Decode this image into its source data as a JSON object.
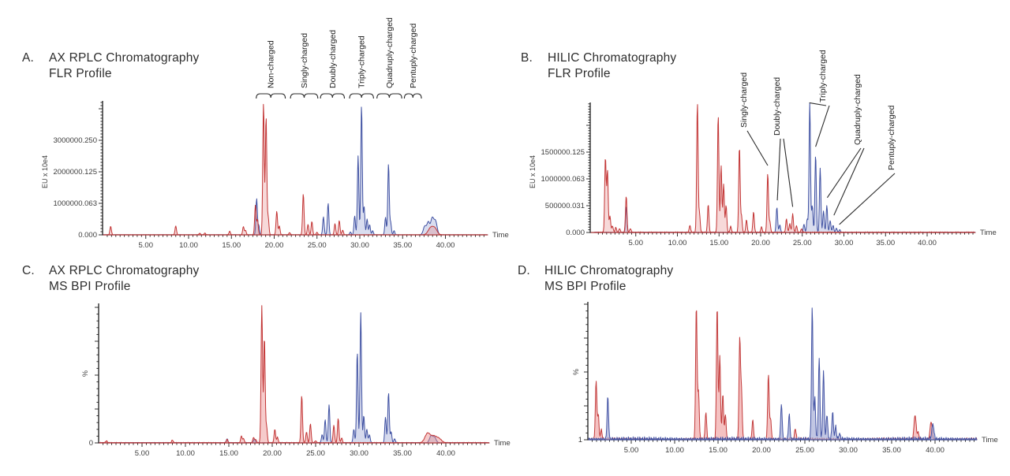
{
  "chart_data": [
    {
      "id": "A",
      "letter": "A.",
      "title_lines": [
        "AX RPLC Chromatography",
        "FLR Profile"
      ],
      "type": "line",
      "xlabel": "Time",
      "ylabel": "EU x 10e4",
      "x_tick_labels": [
        "5.00",
        "10.00",
        "15.00",
        "20.00",
        "25.00",
        "30.00",
        "35.00",
        "40.00"
      ],
      "x_major_ticks": [
        5,
        10,
        15,
        20,
        25,
        30,
        35,
        40
      ],
      "xlim": [
        0,
        44.8
      ],
      "ylim": [
        0,
        4250000
      ],
      "y_ticks": [
        {
          "v": 0,
          "label": "0.000"
        },
        {
          "v": 1000000,
          "label": "1000000.063"
        },
        {
          "v": 2000000,
          "label": "2000000.125"
        },
        {
          "v": 3000000,
          "label": "3000000.250"
        }
      ],
      "series": [
        {
          "name": "trace-blue",
          "color": "#3d4fa1",
          "fill": "rgba(120,132,196,0.28)",
          "noise": 6000,
          "seed": 3,
          "peaks": [
            [
              17.95,
              1150000
            ],
            [
              18.2,
              300000
            ],
            [
              25.75,
              570000
            ],
            [
              26.3,
              1000000
            ],
            [
              28.9,
              90000
            ],
            [
              29.4,
              600000
            ],
            [
              29.8,
              2500000
            ],
            [
              30.2,
              4120000
            ],
            [
              30.5,
              900000
            ],
            [
              30.85,
              500000
            ],
            [
              31.15,
              320000
            ],
            [
              31.5,
              130000
            ],
            [
              33.0,
              550000
            ],
            [
              33.35,
              2250000
            ],
            [
              33.6,
              400000
            ],
            [
              34.0,
              130000
            ],
            [
              37.6,
              280000,
              0.18
            ],
            [
              38.0,
              380000,
              0.15
            ],
            [
              38.45,
              520000,
              0.18
            ],
            [
              38.85,
              420000,
              0.18
            ]
          ]
        },
        {
          "name": "trace-red",
          "color": "#c23434",
          "fill": "rgba(228,120,120,0.28)",
          "noise": 9000,
          "seed": 1,
          "peaks": [
            [
              0.9,
              270000
            ],
            [
              8.5,
              280000
            ],
            [
              11.3,
              50000
            ],
            [
              11.9,
              55000
            ],
            [
              14.8,
              110000
            ],
            [
              16.4,
              260000
            ],
            [
              16.65,
              140000
            ],
            [
              17.8,
              930000
            ],
            [
              18.05,
              480000
            ],
            [
              18.75,
              4180000
            ],
            [
              19.05,
              3750000
            ],
            [
              19.3,
              550000
            ],
            [
              20.3,
              750000
            ],
            [
              20.6,
              280000
            ],
            [
              21.8,
              70000
            ],
            [
              23.4,
              1300000
            ],
            [
              23.95,
              330000
            ],
            [
              24.4,
              420000
            ],
            [
              25.0,
              80000
            ],
            [
              27.1,
              350000
            ],
            [
              27.6,
              450000
            ],
            [
              28.0,
              150000
            ],
            [
              38.3,
              230000,
              0.3
            ],
            [
              38.8,
              170000,
              0.25
            ]
          ]
        }
      ],
      "annotations": {
        "style": "brackets",
        "items": [
          {
            "text": "Non-charged",
            "t1": 17.9,
            "t2": 21.3
          },
          {
            "text": "Singly-charged",
            "t1": 21.9,
            "t2": 25.1
          },
          {
            "text": "Doubly-charged",
            "t1": 25.4,
            "t2": 28.2
          },
          {
            "text": "Triply-charged",
            "t1": 28.8,
            "t2": 31.6
          },
          {
            "text": "Quadruply-charged",
            "t1": 32.0,
            "t2": 34.9
          },
          {
            "text": "Pentuply-charged",
            "t1": 35.2,
            "t2": 37.2
          }
        ]
      }
    },
    {
      "id": "B",
      "letter": "B.",
      "title_lines": [
        "HILIC Chromatography",
        "FLR Profile"
      ],
      "type": "line",
      "xlabel": "Time",
      "ylabel": "EU x 10e4",
      "x_tick_labels": [
        "5.00",
        "10.00",
        "15.00",
        "20.00",
        "25.00",
        "30.00",
        "35.00",
        "40.00"
      ],
      "x_major_ticks": [
        5,
        10,
        15,
        20,
        25,
        30,
        35,
        40
      ],
      "xlim": [
        0,
        45.5
      ],
      "ylim": [
        0,
        2430000
      ],
      "y_ticks": [
        {
          "v": 0,
          "label": "0.000"
        },
        {
          "v": 500000,
          "label": "500000.031"
        },
        {
          "v": 1000000,
          "label": "1000000.063"
        },
        {
          "v": 1500000,
          "label": "1500000.125"
        }
      ],
      "series": [
        {
          "name": "trace-blue",
          "color": "#3d4fa1",
          "fill": "rgba(120,132,196,0.28)",
          "noise": 9000,
          "seed": 7,
          "peaks": [
            [
              3.85,
              480000
            ],
            [
              21.95,
              470000
            ],
            [
              22.3,
              140000
            ],
            [
              25.2,
              150000
            ],
            [
              25.6,
              250000
            ],
            [
              25.9,
              2420000
            ],
            [
              26.2,
              500000
            ],
            [
              26.6,
              1450000
            ],
            [
              27.15,
              1200000
            ],
            [
              27.55,
              400000
            ],
            [
              27.95,
              500000
            ],
            [
              28.35,
              220000
            ],
            [
              28.7,
              130000
            ],
            [
              29.1,
              80000
            ],
            [
              29.5,
              50000
            ]
          ]
        },
        {
          "name": "trace-red",
          "color": "#c23434",
          "fill": "rgba(228,120,120,0.28)",
          "noise": 14000,
          "seed": 5,
          "peaks": [
            [
              1.35,
              1400000
            ],
            [
              1.6,
              1150000
            ],
            [
              1.9,
              300000
            ],
            [
              2.2,
              120000
            ],
            [
              2.6,
              90000
            ],
            [
              3.05,
              70000
            ],
            [
              3.85,
              680000
            ],
            [
              4.35,
              70000
            ],
            [
              11.5,
              130000
            ],
            [
              12.4,
              2420000
            ],
            [
              12.65,
              350000
            ],
            [
              13.7,
              520000
            ],
            [
              14.9,
              2200000
            ],
            [
              15.25,
              1250000
            ],
            [
              15.55,
              900000
            ],
            [
              15.85,
              500000
            ],
            [
              16.4,
              110000
            ],
            [
              17.45,
              1600000
            ],
            [
              17.7,
              300000
            ],
            [
              18.3,
              230000
            ],
            [
              19.15,
              380000
            ],
            [
              20.1,
              100000
            ],
            [
              20.85,
              1100000
            ],
            [
              21.1,
              200000
            ],
            [
              23.1,
              250000
            ],
            [
              23.5,
              160000
            ],
            [
              23.85,
              340000
            ],
            [
              24.3,
              120000
            ],
            [
              24.9,
              60000
            ]
          ]
        }
      ],
      "annotations": {
        "style": "leaders",
        "items": [
          {
            "text": "Singly-charged",
            "label_x": 946,
            "label_y": 162,
            "anchors": [
              [
                20.85,
                1250000
              ]
            ]
          },
          {
            "text": "Doubly-charged",
            "label_x": 988,
            "label_y": 172,
            "anchors": [
              [
                22.0,
                600000
              ],
              [
                23.85,
                480000
              ]
            ]
          },
          {
            "text": "Triply-charged",
            "label_x": 1046,
            "label_y": 130,
            "anchors": [
              [
                25.85,
                2420000
              ],
              [
                26.6,
                1600000
              ]
            ]
          },
          {
            "text": "Quadruply-charged",
            "label_x": 1090,
            "label_y": 184,
            "anchors": [
              [
                28.0,
                650000
              ],
              [
                28.8,
                320000
              ]
            ]
          },
          {
            "text": "Pentuply-charged",
            "label_x": 1133,
            "label_y": 216,
            "anchors": [
              [
                29.45,
                150000
              ]
            ]
          }
        ]
      }
    },
    {
      "id": "C",
      "letter": "C.",
      "title_lines": [
        "AX RPLC Chromatography",
        "MS BPI Profile"
      ],
      "type": "line",
      "xlabel": "Time",
      "ylabel": "%",
      "x_tick_labels": [
        "5.00",
        "10.00",
        "15.00",
        "20.00",
        "25.00",
        "30.00",
        "35.00",
        "40.00"
      ],
      "x_major_ticks": [
        5,
        10,
        15,
        20,
        25,
        30,
        35,
        40
      ],
      "xlim": [
        0,
        44.8
      ],
      "ylim": [
        0,
        103
      ],
      "y_ticks": [
        {
          "v": 0,
          "label": "0"
        }
      ],
      "series": [
        {
          "name": "trace-blue",
          "color": "#3d4fa1",
          "fill": "rgba(120,132,196,0.30)",
          "noise": 0.4,
          "seed": 11,
          "peaks": [
            [
              14.8,
              3
            ],
            [
              17.95,
              3
            ],
            [
              25.75,
              6
            ],
            [
              26.1,
              17
            ],
            [
              26.55,
              28
            ],
            [
              29.4,
              10
            ],
            [
              29.8,
              67
            ],
            [
              30.2,
              96
            ],
            [
              30.55,
              20
            ],
            [
              30.9,
              10
            ],
            [
              31.2,
              6
            ],
            [
              33.05,
              19
            ],
            [
              33.4,
              37
            ],
            [
              33.7,
              8
            ],
            [
              34.1,
              3
            ],
            [
              38.3,
              5,
              0.18
            ],
            [
              38.7,
              4,
              0.18
            ]
          ]
        },
        {
          "name": "trace-red",
          "color": "#c23434",
          "fill": "rgba(235,140,140,0.45)",
          "noise": 0.5,
          "seed": 9,
          "peaks": [
            [
              0.9,
              1.5
            ],
            [
              8.5,
              2
            ],
            [
              14.8,
              2.5
            ],
            [
              16.45,
              5
            ],
            [
              16.7,
              3
            ],
            [
              17.85,
              4
            ],
            [
              18.1,
              2.5
            ],
            [
              18.8,
              101
            ],
            [
              19.1,
              78
            ],
            [
              19.35,
              12
            ],
            [
              20.3,
              10
            ],
            [
              20.6,
              4
            ],
            [
              23.4,
              35
            ],
            [
              23.95,
              8
            ],
            [
              24.4,
              14
            ],
            [
              25.0,
              1.5
            ],
            [
              27.1,
              13
            ],
            [
              27.6,
              18
            ],
            [
              28.0,
              3.5
            ],
            [
              37.9,
              7,
              0.3
            ],
            [
              38.6,
              4.5,
              0.3
            ],
            [
              39.2,
              3,
              0.3
            ]
          ]
        }
      ],
      "annotations": {
        "style": "none",
        "items": []
      }
    },
    {
      "id": "D",
      "letter": "D.",
      "title_lines": [
        "HILIC Chromatography",
        "MS BPI Profile"
      ],
      "type": "line",
      "xlabel": "Time",
      "ylabel": "%",
      "x_tick_labels": [
        "5.00",
        "10.00",
        "15.00",
        "20.00",
        "25.00",
        "30.00",
        "35.00",
        "40.00"
      ],
      "x_major_ticks": [
        5,
        10,
        15,
        20,
        25,
        30,
        35,
        40
      ],
      "xlim": [
        0,
        44.6
      ],
      "ylim": [
        0,
        102
      ],
      "y_ticks": [
        {
          "v": 0,
          "label": "1"
        }
      ],
      "series": [
        {
          "name": "trace-red",
          "color": "#c23b3b",
          "fill": "rgba(238,150,150,0.58)",
          "noise": 1.6,
          "seed": 13,
          "peaks": [
            [
              0.95,
              43
            ],
            [
              1.2,
              18
            ],
            [
              1.55,
              7
            ],
            [
              12.5,
              99
            ],
            [
              12.75,
              35
            ],
            [
              13.6,
              20
            ],
            [
              14.9,
              99
            ],
            [
              15.2,
              62
            ],
            [
              15.55,
              33
            ],
            [
              15.85,
              18
            ],
            [
              17.5,
              74
            ],
            [
              17.7,
              35
            ],
            [
              19.0,
              14
            ],
            [
              20.8,
              48
            ],
            [
              21.05,
              15
            ],
            [
              23.9,
              8
            ],
            [
              37.7,
              18,
              0.12
            ],
            [
              38.05,
              5
            ],
            [
              39.55,
              13,
              0.12
            ]
          ]
        },
        {
          "name": "trace-blue",
          "color": "#4353a4",
          "fill": "rgba(160,168,212,0.65)",
          "noise": 2.2,
          "seed": 17,
          "peaks": [
            [
              2.3,
              31
            ],
            [
              22.3,
              26
            ],
            [
              23.2,
              18
            ],
            [
              25.85,
              97
            ],
            [
              26.15,
              30
            ],
            [
              26.65,
              60
            ],
            [
              27.15,
              50
            ],
            [
              27.55,
              18
            ],
            [
              28.2,
              20
            ],
            [
              28.55,
              9
            ],
            [
              29.0,
              4
            ],
            [
              39.75,
              11,
              0.12
            ]
          ]
        }
      ],
      "annotations": {
        "style": "none",
        "items": []
      }
    }
  ]
}
